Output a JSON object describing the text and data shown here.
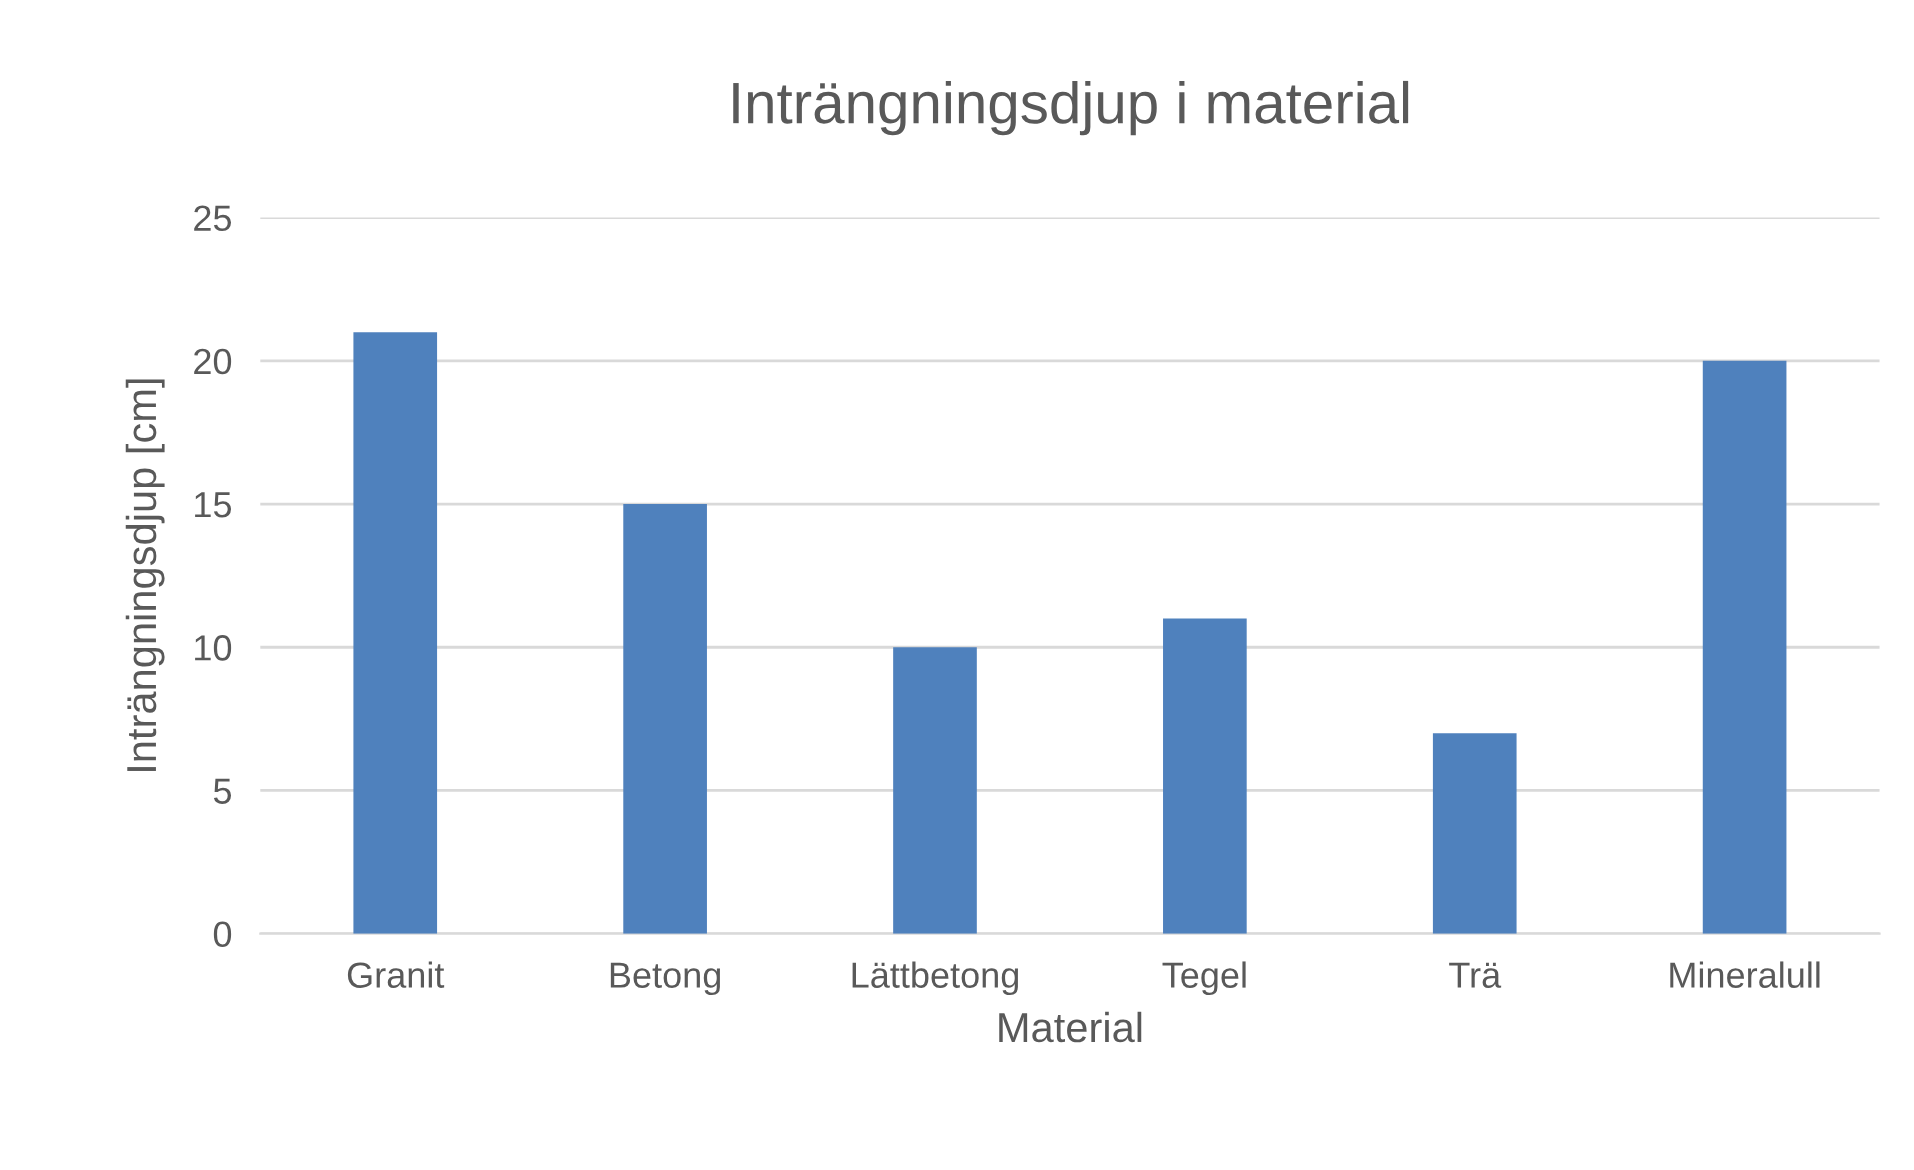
{
  "chart_data": {
    "type": "bar",
    "title": "Inträngningsdjup i material",
    "xlabel": "Material",
    "ylabel": "Inträngningsdjup [cm]",
    "categories": [
      "Granit",
      "Betong",
      "Lättbetong",
      "Tegel",
      "Trä",
      "Mineralull"
    ],
    "values": [
      21,
      15,
      10,
      11,
      7,
      20
    ],
    "color": "#4f81bd",
    "ylim": [
      0,
      25
    ],
    "yticks": [
      0,
      5,
      10,
      15,
      20,
      25
    ],
    "grid": "y",
    "legend": false
  }
}
